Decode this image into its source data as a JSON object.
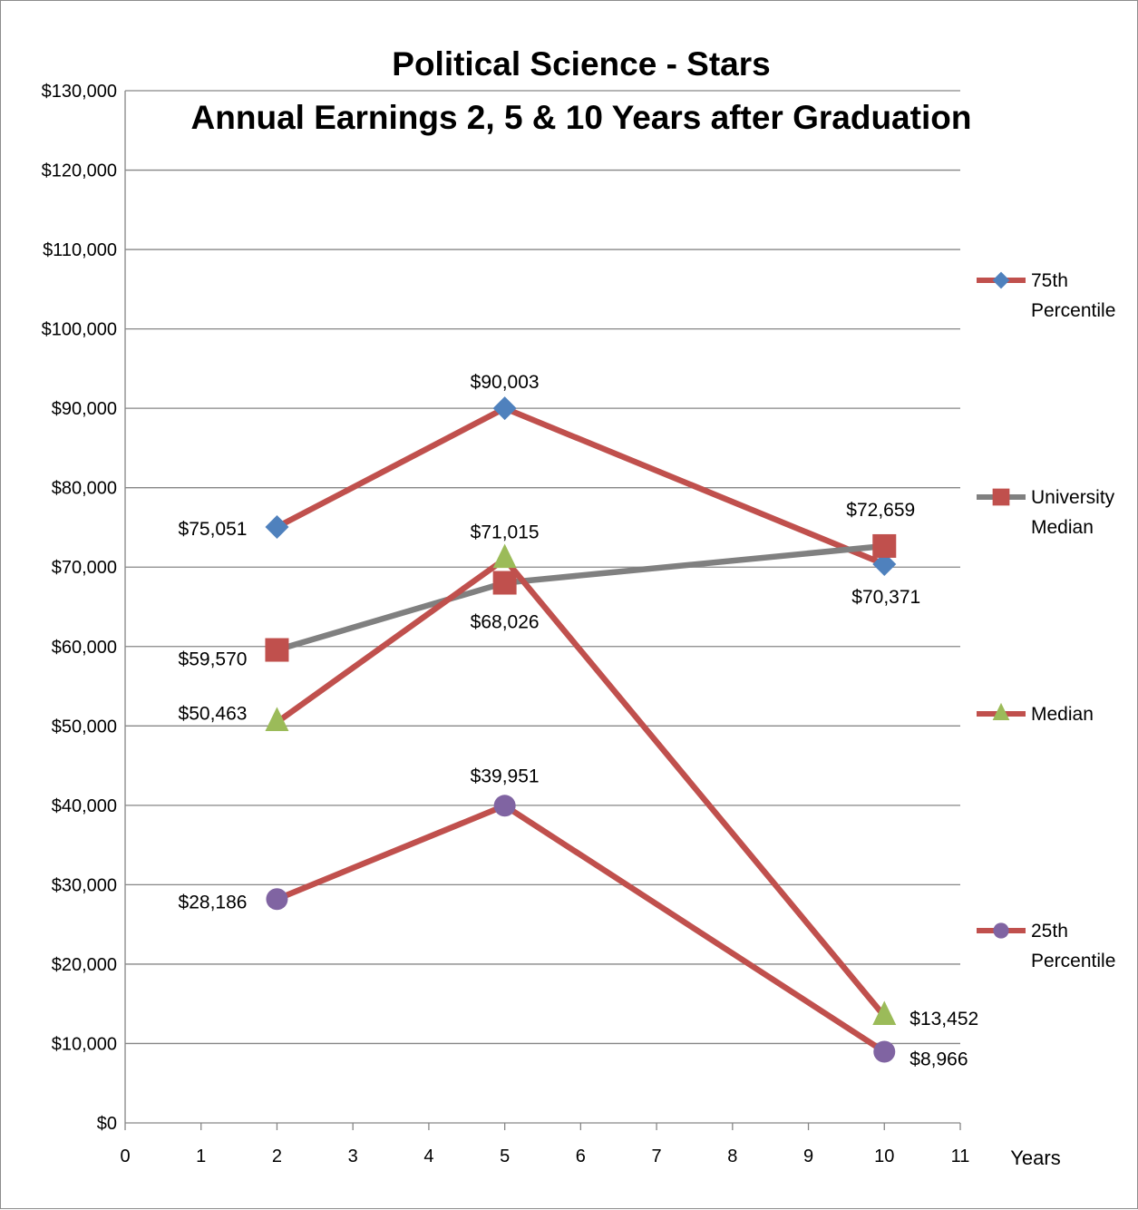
{
  "chart_data": {
    "type": "line",
    "title": "Political Science - Stars",
    "subtitle": "Annual Earnings 2, 5 & 10 Years after Graduation",
    "xlabel": "Years",
    "ylabel": "",
    "xlim": [
      0,
      11
    ],
    "ylim": [
      0,
      130000
    ],
    "x_ticks": [
      "0",
      "1",
      "2",
      "3",
      "4",
      "5",
      "6",
      "7",
      "8",
      "9",
      "10",
      "11"
    ],
    "y_ticks": [
      "$0",
      "$10,000",
      "$20,000",
      "$30,000",
      "$40,000",
      "$50,000",
      "$60,000",
      "$70,000",
      "$80,000",
      "$90,000",
      "$100,000",
      "$110,000",
      "$120,000",
      "$130,000"
    ],
    "grid": "horizontal",
    "legend_position": "right",
    "series": [
      {
        "name": "75th Percentile",
        "legend_lines": [
          "75th",
          "Percentile"
        ],
        "line_color": "#c0504d",
        "marker": "diamond",
        "marker_color": "#4f81bd",
        "x": [
          2,
          5,
          10
        ],
        "values": [
          75051,
          90003,
          70371
        ],
        "labels": [
          "$75,051",
          "$90,003",
          "$70,371"
        ]
      },
      {
        "name": "University Median",
        "legend_lines": [
          "University",
          "Median"
        ],
        "line_color": "#808080",
        "marker": "square",
        "marker_color": "#c0504d",
        "x": [
          2,
          5,
          10
        ],
        "values": [
          59570,
          68026,
          72659
        ],
        "labels": [
          "$59,570",
          "$68,026",
          "$72,659"
        ]
      },
      {
        "name": "Median",
        "legend_lines": [
          "Median"
        ],
        "line_color": "#c0504d",
        "marker": "triangle",
        "marker_color": "#9bbb59",
        "x": [
          2,
          5,
          10
        ],
        "values": [
          50463,
          71015,
          13452
        ],
        "labels": [
          "$50,463",
          "$71,015",
          "$13,452"
        ]
      },
      {
        "name": "25th Percentile",
        "legend_lines": [
          "25th",
          "Percentile"
        ],
        "line_color": "#c0504d",
        "marker": "circle",
        "marker_color": "#8064a2",
        "x": [
          2,
          5,
          10
        ],
        "values": [
          28186,
          39951,
          8966
        ],
        "labels": [
          "$28,186",
          "$39,951",
          "$8,966"
        ]
      }
    ]
  }
}
